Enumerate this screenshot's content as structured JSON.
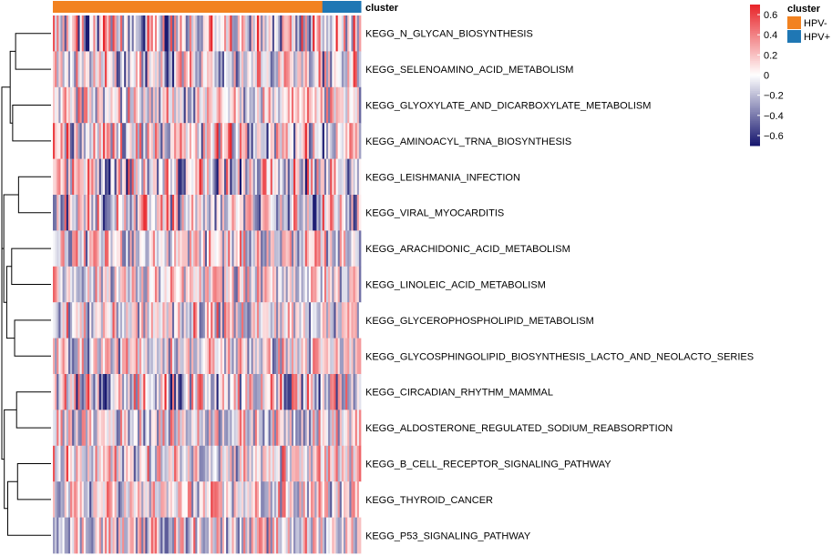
{
  "chart_data": {
    "type": "heatmap",
    "title": "",
    "annotation": {
      "title": "cluster",
      "groups": [
        {
          "name": "HPV-",
          "color": "#F28220",
          "count": 140
        },
        {
          "name": "HPV+",
          "color": "#1F77B4",
          "count": 20
        }
      ]
    },
    "rows": [
      "KEGG_N_GLYCAN_BIOSYNTHESIS",
      "KEGG_SELENOAMINO_ACID_METABOLISM",
      "KEGG_GLYOXYLATE_AND_DICARBOXYLATE_METABOLISM",
      "KEGG_AMINOACYL_TRNA_BIOSYNTHESIS",
      "KEGG_LEISHMANIA_INFECTION",
      "KEGG_VIRAL_MYOCARDITIS",
      "KEGG_ARACHIDONIC_ACID_METABOLISM",
      "KEGG_LINOLEIC_ACID_METABOLISM",
      "KEGG_GLYCEROPHOSPHOLIPID_METABOLISM",
      "KEGG_GLYCOSPHINGOLIPID_BIOSYNTHESIS_LACTO_AND_NEOLACTO_SERIES",
      "KEGG_CIRCADIAN_RHYTHM_MAMMAL",
      "KEGG_ALDOSTERONE_REGULATED_SODIUM_REABSORPTION",
      "KEGG_B_CELL_RECEPTOR_SIGNALING_PATHWAY",
      "KEGG_THYROID_CANCER",
      "KEGG_P53_SIGNALING_PATHWAY"
    ],
    "color_scale": {
      "range": [
        -0.7,
        0.7
      ],
      "low_color": "#191970",
      "mid_color": "#FFFFFF",
      "high_color": "#E8262B",
      "ticks": [
        0.6,
        0.4,
        0.2,
        0,
        -0.2,
        -0.4,
        -0.6
      ],
      "tick_labels": [
        "0.6",
        "0.4",
        "0.2",
        "0",
        "−0.2",
        "−0.4",
        "−0.6"
      ]
    },
    "dendrogram": {
      "merges": [
        [
          0,
          1,
          0.72
        ],
        [
          2,
          3,
          0.78
        ],
        [
          15,
          16,
          0.83
        ],
        [
          4,
          5,
          0.66
        ],
        [
          6,
          7,
          0.8
        ],
        [
          8,
          9,
          0.74
        ],
        [
          19,
          20,
          0.9
        ],
        [
          18,
          21,
          0.96
        ],
        [
          10,
          11,
          0.7
        ],
        [
          12,
          13,
          0.68
        ],
        [
          24,
          14,
          0.88
        ],
        [
          23,
          25,
          0.95
        ],
        [
          22,
          26,
          1.0
        ],
        [
          17,
          27,
          1.0
        ]
      ]
    }
  },
  "legend": {
    "title": "cluster",
    "items": [
      {
        "label": "HPV-",
        "color": "#F28220"
      },
      {
        "label": "HPV+",
        "color": "#1F77B4"
      }
    ]
  }
}
